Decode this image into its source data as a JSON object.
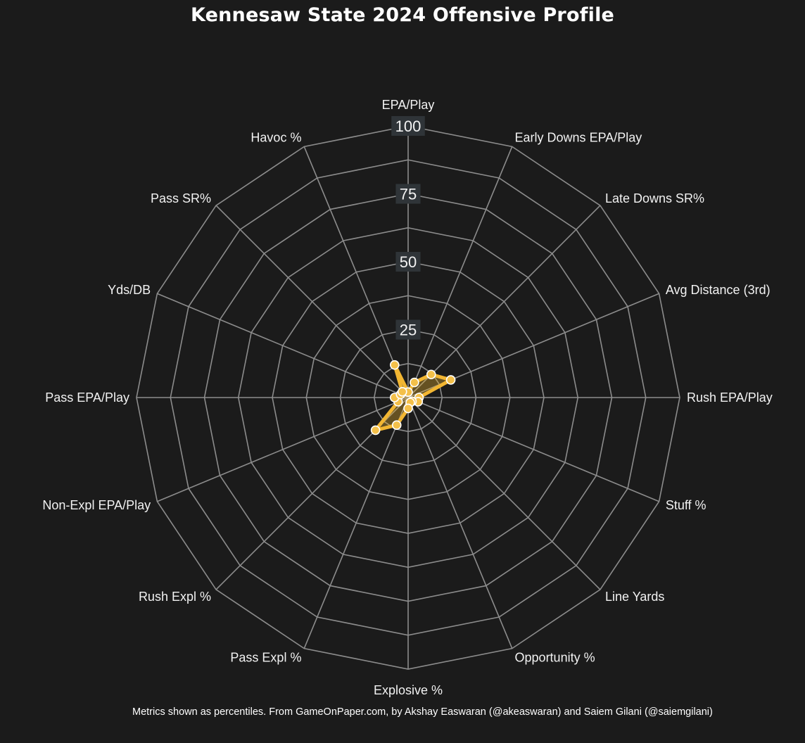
{
  "chart_data": {
    "type": "radar",
    "title": "Kennesaw State 2024 Offensive Profile",
    "axes": [
      "EPA/Play",
      "Early Downs EPA/Play",
      "Late Downs SR%",
      "Avg Distance (3rd)",
      "Rush EPA/Play",
      "Stuff %",
      "Line Yards",
      "Opportunity %",
      "Explosive %",
      "Pass Expl %",
      "Rush Expl %",
      "Non-Expl EPA/Play",
      "Pass EPA/Play",
      "Yds/DB",
      "Pass SR%",
      "Havoc %"
    ],
    "values": [
      2,
      6,
      12,
      17,
      4,
      4,
      2,
      2,
      4,
      11,
      17,
      4,
      5,
      3,
      3,
      13
    ],
    "range": [
      0,
      100
    ],
    "ticks": [
      25,
      50,
      75,
      100
    ],
    "grid": true,
    "colors": {
      "background": "#1b1b1b",
      "grid": "#8c8c8c",
      "series_line": "#f2b632",
      "series_fill": "#f2b632",
      "marker_fill": "#f4c04a",
      "marker_edge": "#ffffff",
      "tick_box": "#2f3438"
    }
  },
  "footnote": "Metrics shown as percentiles. From GameOnPaper.com, by Akshay Easwaran (@akeaswaran) and Saiem Gilani (@saiemgilani)"
}
